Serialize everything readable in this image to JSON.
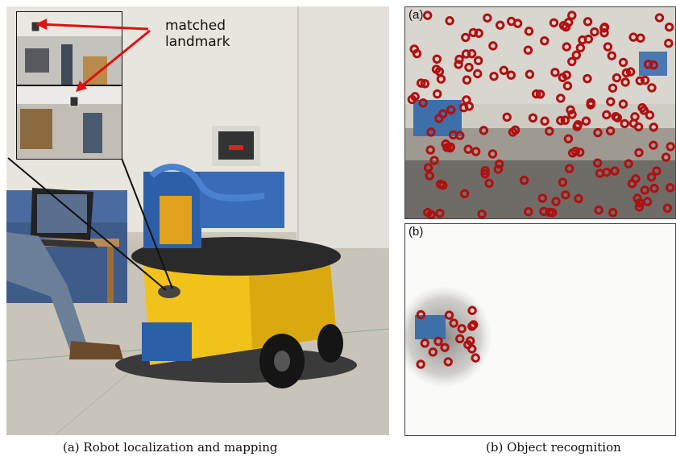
{
  "figure": {
    "left_annotation": {
      "line1": "matched",
      "line2": "landmark"
    },
    "panel_b_top_label": "(a)",
    "panel_b_bottom_label": "(b)",
    "caption_a": "(a) Robot localization and mapping",
    "caption_b": "(b) Object recognition",
    "colors": {
      "keypoint": "#b01010",
      "arrow": "#e01010",
      "robot_body": "#f0c21a",
      "robot_blue": "#2d5fa8"
    }
  }
}
